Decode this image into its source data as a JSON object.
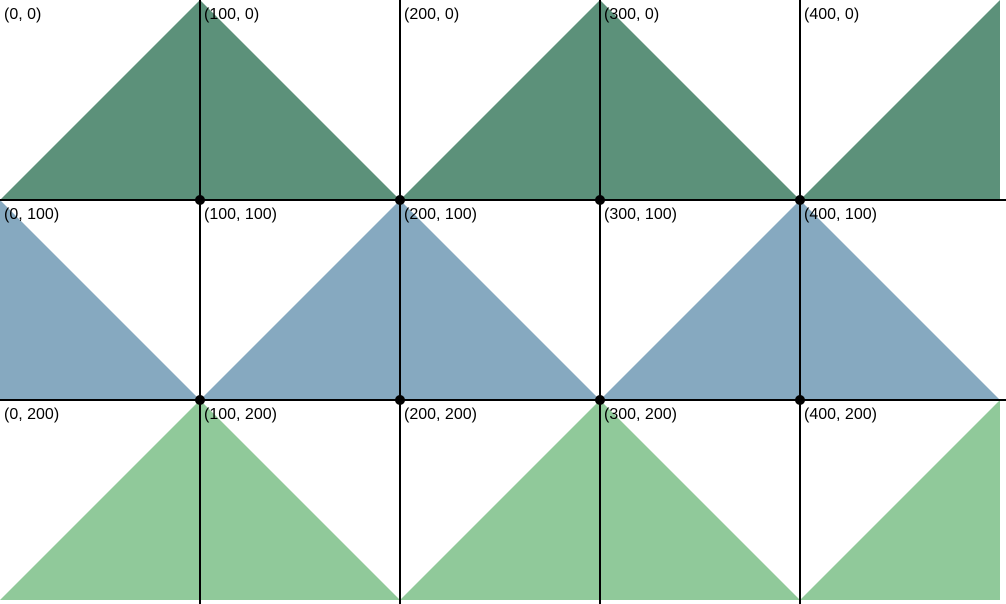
{
  "colors": {
    "background": "#ffffff",
    "row_0_fill": "#5c917a",
    "row_1_fill": "#86a9c0",
    "row_2_fill": "#90c99a",
    "grid_line": "#000000",
    "vertex_dot": "#000000"
  },
  "grid": {
    "columns": [
      0,
      100,
      200,
      300,
      400
    ],
    "rows": [
      0,
      100,
      200
    ]
  },
  "coordinate_labels": [
    {
      "text": "(0, 0)",
      "col": 0,
      "row": 0
    },
    {
      "text": "(100, 0)",
      "col": 1,
      "row": 0
    },
    {
      "text": "(200, 0)",
      "col": 2,
      "row": 0
    },
    {
      "text": "(300, 0)",
      "col": 3,
      "row": 0
    },
    {
      "text": "(400, 0)",
      "col": 4,
      "row": 0
    },
    {
      "text": "(0, 100)",
      "col": 0,
      "row": 1
    },
    {
      "text": "(100, 100)",
      "col": 1,
      "row": 1
    },
    {
      "text": "(200, 100)",
      "col": 2,
      "row": 1
    },
    {
      "text": "(300, 100)",
      "col": 3,
      "row": 1
    },
    {
      "text": "(400, 100)",
      "col": 4,
      "row": 1
    },
    {
      "text": "(0, 200)",
      "col": 0,
      "row": 2
    },
    {
      "text": "(100, 200)",
      "col": 1,
      "row": 2
    },
    {
      "text": "(200, 200)",
      "col": 2,
      "row": 2
    },
    {
      "text": "(300, 200)",
      "col": 3,
      "row": 2
    },
    {
      "text": "(400, 200)",
      "col": 4,
      "row": 2
    }
  ],
  "vertex_dots": [
    {
      "col": 1,
      "row": 1
    },
    {
      "col": 2,
      "row": 1
    },
    {
      "col": 3,
      "row": 1
    },
    {
      "col": 4,
      "row": 1
    },
    {
      "col": 1,
      "row": 2
    },
    {
      "col": 2,
      "row": 2
    },
    {
      "col": 3,
      "row": 2
    },
    {
      "col": 4,
      "row": 2
    }
  ]
}
